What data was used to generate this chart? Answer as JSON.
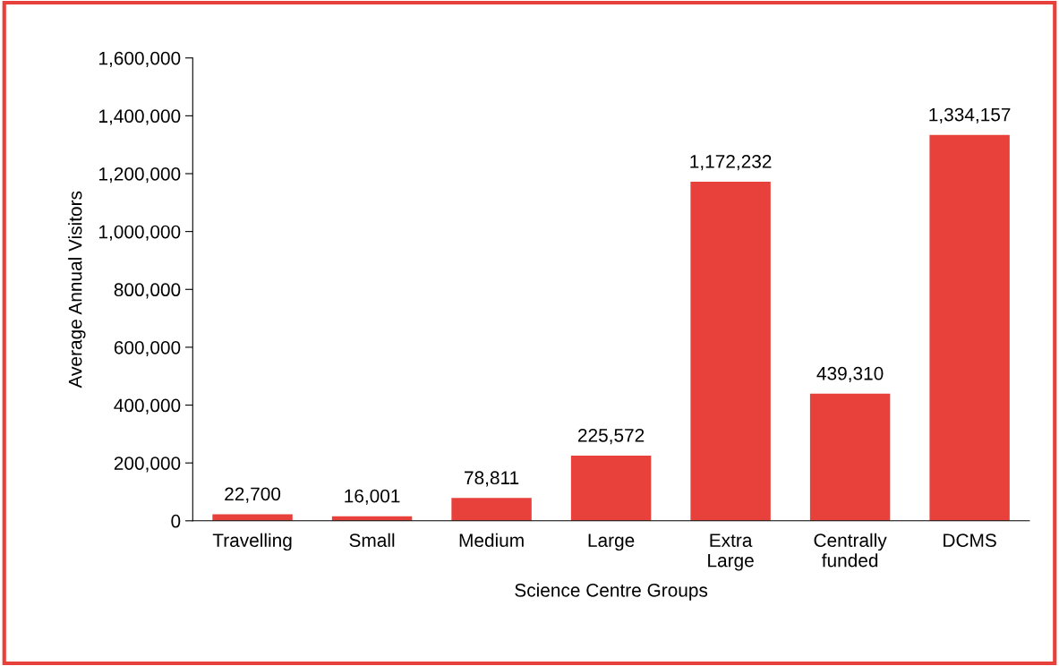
{
  "chart_data": {
    "type": "bar",
    "xlabel": "Science Centre Groups",
    "ylabel": "Average Annual Visitors",
    "categories": [
      "Travelling",
      "Small",
      "Medium",
      "Large",
      "Extra\nLarge",
      "Centrally\nfunded",
      "DCMS"
    ],
    "values": [
      22700,
      16001,
      78811,
      225572,
      1172232,
      439310,
      1334157
    ],
    "value_labels": [
      "22,700",
      "16,001",
      "78,811",
      "225,572",
      "1,172,232",
      "439,310",
      "1,334,157"
    ],
    "color": "#e8403a",
    "grid": false,
    "legend": false,
    "ylim": [
      0,
      1600000
    ],
    "yticks": [
      {
        "value": 0,
        "label": "0"
      },
      {
        "value": 200000,
        "label": "200,000"
      },
      {
        "value": 400000,
        "label": "400,000"
      },
      {
        "value": 600000,
        "label": "600,000"
      },
      {
        "value": 800000,
        "label": "800,000"
      },
      {
        "value": 1000000,
        "label": "1,000,000"
      },
      {
        "value": 1200000,
        "label": "1,200,000"
      },
      {
        "value": 1400000,
        "label": "1,400,000"
      },
      {
        "value": 1600000,
        "label": "1,600,000"
      }
    ]
  }
}
